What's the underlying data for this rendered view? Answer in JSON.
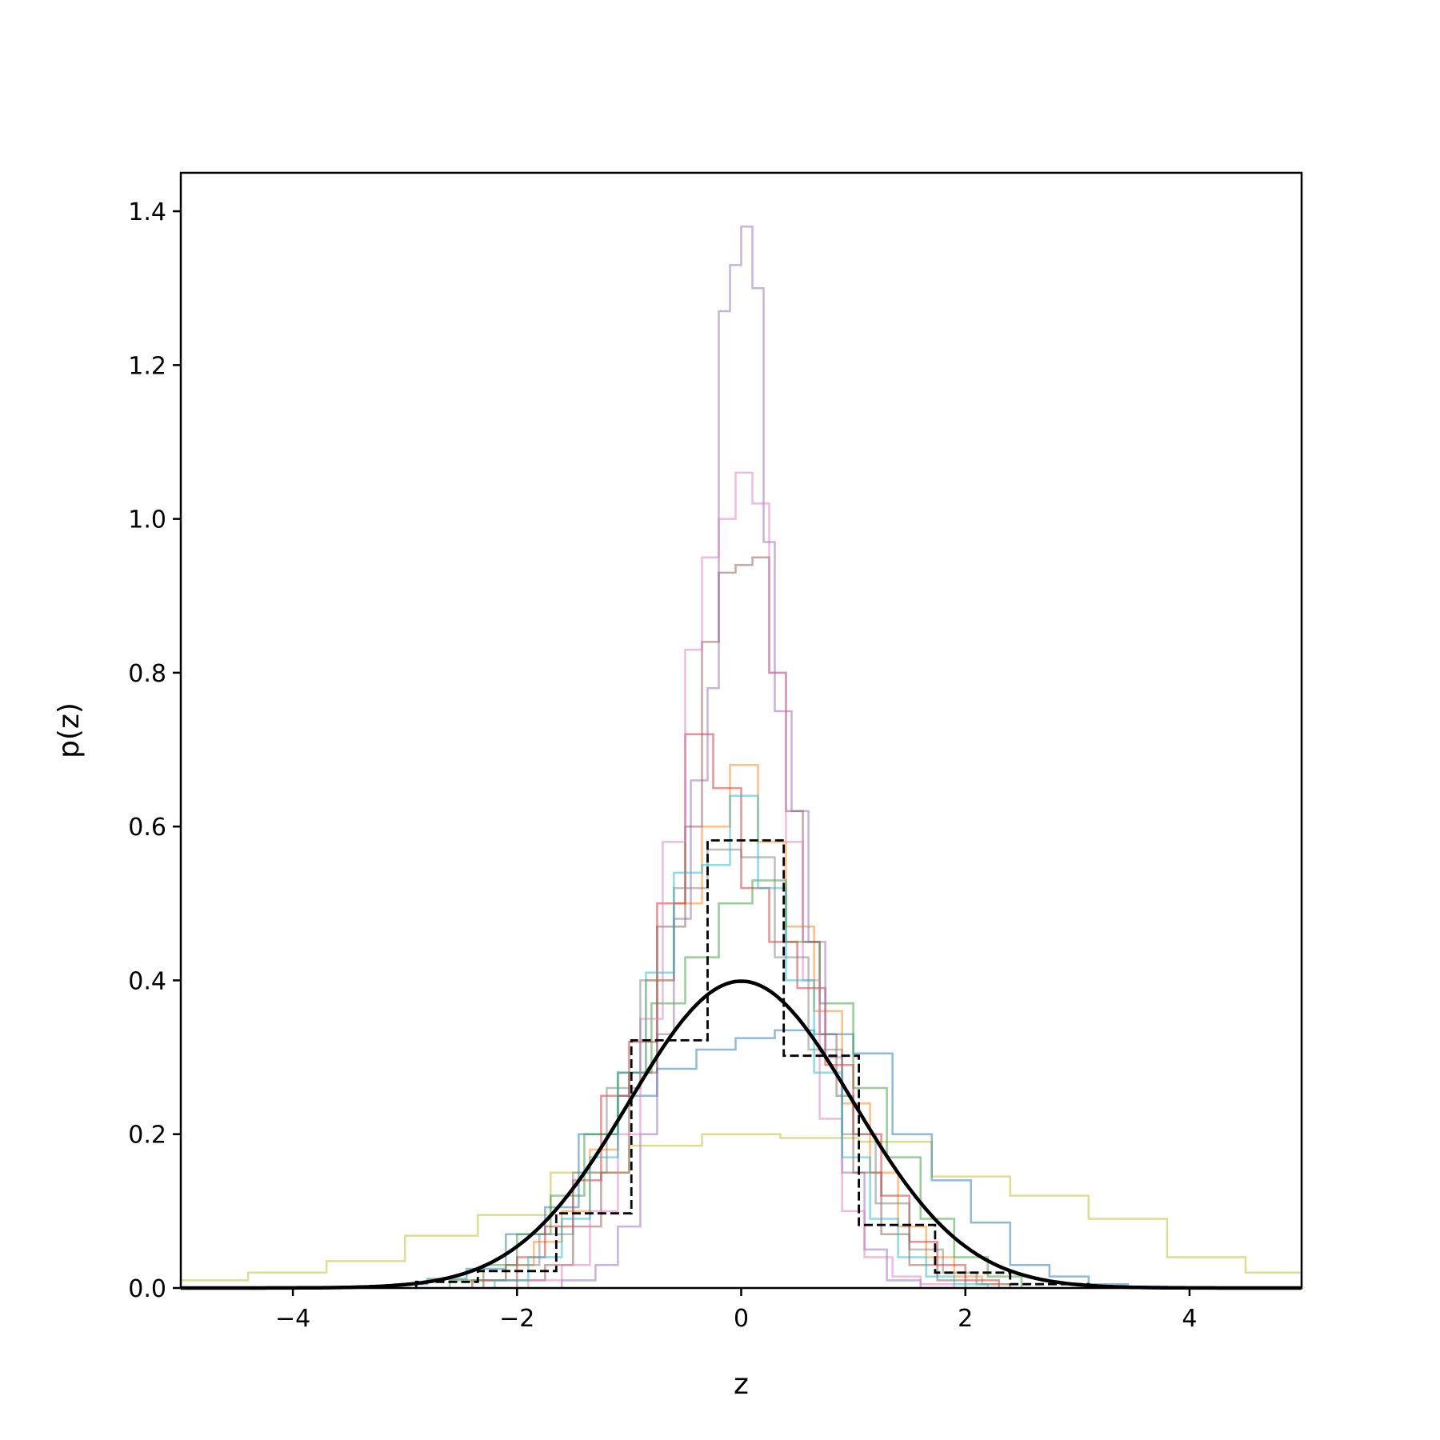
{
  "chart_data": {
    "type": "line",
    "title": "",
    "xlabel": "z",
    "ylabel": "p(z)",
    "xlim": [
      -5,
      5
    ],
    "ylim": [
      0,
      1.45
    ],
    "x_ticks": [
      -4,
      -2,
      0,
      2,
      4
    ],
    "x_tick_labels": [
      "−4",
      "−2",
      "0",
      "2",
      "4"
    ],
    "y_ticks": [
      0.0,
      0.2,
      0.4,
      0.6,
      0.8,
      1.0,
      1.2,
      1.4
    ],
    "y_tick_labels": [
      "0.0",
      "0.2",
      "0.4",
      "0.6",
      "0.8",
      "1.0",
      "1.2",
      "1.4"
    ],
    "grid": false,
    "legend": "none",
    "histograms": [
      {
        "color": "#bcbd22",
        "edges": [
          -5.0,
          -4.4,
          -3.7,
          -3.0,
          -2.35,
          -1.7,
          -1.0,
          -0.35,
          0.35,
          1.05,
          1.7,
          2.4,
          3.1,
          3.8,
          4.5,
          5.0
        ],
        "values": [
          0.01,
          0.02,
          0.035,
          0.068,
          0.095,
          0.15,
          0.185,
          0.2,
          0.195,
          0.19,
          0.145,
          0.12,
          0.09,
          0.04,
          0.02
        ]
      },
      {
        "color": "#1f77b4",
        "edges": [
          -3.1,
          -2.8,
          -2.45,
          -2.1,
          -1.75,
          -1.45,
          -1.1,
          -0.75,
          -0.4,
          -0.05,
          0.3,
          0.65,
          1.0,
          1.35,
          1.7,
          2.05,
          2.4,
          2.75,
          3.1,
          3.45,
          3.8
        ],
        "values": [
          0.005,
          0.012,
          0.025,
          0.07,
          0.105,
          0.2,
          0.25,
          0.285,
          0.31,
          0.325,
          0.335,
          0.33,
          0.305,
          0.2,
          0.14,
          0.085,
          0.03,
          0.015,
          0.005,
          0.002
        ]
      },
      {
        "color": "#ff7f0e",
        "edges": [
          -2.4,
          -2.1,
          -1.85,
          -1.6,
          -1.35,
          -1.1,
          -0.85,
          -0.6,
          -0.35,
          -0.1,
          0.15,
          0.4,
          0.65,
          0.9,
          1.15,
          1.4,
          1.65,
          1.9,
          2.15,
          2.4
        ],
        "values": [
          0.01,
          0.03,
          0.06,
          0.1,
          0.18,
          0.28,
          0.4,
          0.5,
          0.6,
          0.68,
          0.58,
          0.47,
          0.36,
          0.24,
          0.15,
          0.08,
          0.04,
          0.015,
          0.005
        ]
      },
      {
        "color": "#2ca02c",
        "edges": [
          -2.6,
          -2.3,
          -2.0,
          -1.7,
          -1.4,
          -1.1,
          -0.8,
          -0.5,
          -0.2,
          0.1,
          0.4,
          0.7,
          1.0,
          1.3,
          1.6,
          1.9,
          2.2,
          2.5
        ],
        "values": [
          0.01,
          0.03,
          0.07,
          0.12,
          0.2,
          0.28,
          0.37,
          0.43,
          0.5,
          0.53,
          0.45,
          0.37,
          0.26,
          0.17,
          0.09,
          0.04,
          0.015
        ]
      },
      {
        "color": "#d62728",
        "edges": [
          -2.3,
          -2.0,
          -1.75,
          -1.5,
          -1.25,
          -1.0,
          -0.75,
          -0.5,
          -0.25,
          0.0,
          0.25,
          0.5,
          0.75,
          1.0,
          1.25,
          1.5,
          1.75,
          2.0,
          2.3
        ],
        "values": [
          0.01,
          0.04,
          0.08,
          0.14,
          0.25,
          0.32,
          0.5,
          0.72,
          0.65,
          0.52,
          0.45,
          0.39,
          0.29,
          0.2,
          0.12,
          0.06,
          0.03,
          0.01
        ]
      },
      {
        "color": "#9467bd",
        "edges": [
          -1.6,
          -1.3,
          -1.1,
          -0.9,
          -0.75,
          -0.6,
          -0.45,
          -0.3,
          -0.2,
          -0.1,
          0.0,
          0.1,
          0.2,
          0.3,
          0.45,
          0.6,
          0.75,
          0.9,
          1.1,
          1.3,
          1.6
        ],
        "values": [
          0.01,
          0.03,
          0.08,
          0.2,
          0.33,
          0.48,
          0.66,
          0.78,
          1.27,
          1.33,
          1.38,
          1.3,
          0.97,
          0.75,
          0.62,
          0.45,
          0.3,
          0.15,
          0.05,
          0.01
        ]
      },
      {
        "color": "#8c564b",
        "edges": [
          -2.0,
          -1.75,
          -1.5,
          -1.25,
          -1.0,
          -0.75,
          -0.5,
          -0.35,
          -0.2,
          -0.05,
          0.1,
          0.25,
          0.4,
          0.55,
          0.7,
          0.85,
          1.0,
          1.25,
          1.5,
          1.75,
          2.0
        ],
        "values": [
          0.01,
          0.03,
          0.08,
          0.15,
          0.28,
          0.47,
          0.6,
          0.84,
          0.93,
          0.94,
          0.95,
          0.8,
          0.62,
          0.45,
          0.33,
          0.25,
          0.15,
          0.07,
          0.03,
          0.01
        ]
      },
      {
        "color": "#e377c2",
        "edges": [
          -1.9,
          -1.6,
          -1.35,
          -1.1,
          -0.9,
          -0.7,
          -0.5,
          -0.35,
          -0.2,
          -0.05,
          0.1,
          0.25,
          0.4,
          0.55,
          0.7,
          0.9,
          1.1,
          1.35,
          1.6,
          1.9
        ],
        "values": [
          0.01,
          0.03,
          0.1,
          0.2,
          0.35,
          0.58,
          0.83,
          0.95,
          1.0,
          1.06,
          1.02,
          0.8,
          0.58,
          0.4,
          0.22,
          0.1,
          0.04,
          0.015,
          0.005
        ]
      },
      {
        "color": "#7f7f7f",
        "edges": [
          -2.4,
          -2.1,
          -1.8,
          -1.5,
          -1.2,
          -0.9,
          -0.6,
          -0.3,
          0.0,
          0.3,
          0.6,
          0.9,
          1.2,
          1.5,
          1.8,
          2.1,
          2.4
        ],
        "values": [
          0.01,
          0.03,
          0.07,
          0.15,
          0.26,
          0.4,
          0.52,
          0.57,
          0.56,
          0.43,
          0.31,
          0.2,
          0.11,
          0.05,
          0.02,
          0.005
        ]
      },
      {
        "color": "#17becf",
        "edges": [
          -2.2,
          -1.9,
          -1.6,
          -1.35,
          -1.1,
          -0.85,
          -0.6,
          -0.35,
          -0.1,
          0.15,
          0.4,
          0.65,
          0.9,
          1.15,
          1.4,
          1.65,
          1.9,
          2.2
        ],
        "values": [
          0.01,
          0.04,
          0.09,
          0.17,
          0.28,
          0.41,
          0.54,
          0.55,
          0.64,
          0.52,
          0.4,
          0.28,
          0.17,
          0.09,
          0.04,
          0.015,
          0.005
        ]
      }
    ],
    "dashed_histogram": {
      "color": "#000000",
      "edges": [
        -2.9,
        -2.35,
        -1.65,
        -0.98,
        -0.3,
        0.38,
        1.05,
        1.73,
        2.4,
        3.1
      ],
      "values": [
        0.008,
        0.022,
        0.097,
        0.322,
        0.582,
        0.302,
        0.082,
        0.02,
        0.005
      ]
    },
    "normal_curve": {
      "color": "#000000",
      "mean": 0,
      "sd": 1,
      "label": ""
    }
  }
}
